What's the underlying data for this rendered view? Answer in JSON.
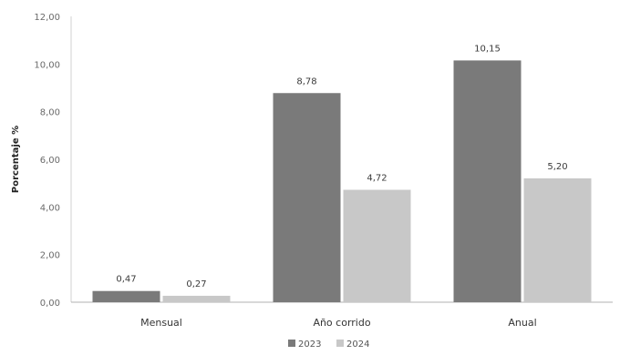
{
  "chart_data": {
    "type": "bar",
    "title": "",
    "xlabel": "",
    "ylabel": "Porcentaje %",
    "ylim": [
      0,
      12
    ],
    "yticks": [
      "0,00",
      "2,00",
      "4,00",
      "6,00",
      "8,00",
      "10,00",
      "12,00"
    ],
    "ytick_values": [
      0,
      2,
      4,
      6,
      8,
      10,
      12
    ],
    "categories": [
      "Mensual",
      "Año corrido",
      "Anual"
    ],
    "series": [
      {
        "name": "2023",
        "color": "#7a7a7a",
        "values": [
          0.47,
          8.78,
          10.15
        ],
        "labels": [
          "0,47",
          "8,78",
          "10,15"
        ]
      },
      {
        "name": "2024",
        "color": "#c8c8c8",
        "values": [
          0.27,
          4.72,
          5.2
        ],
        "labels": [
          "0,27",
          "4,72",
          "5,20"
        ]
      }
    ],
    "grid": false,
    "legend_position": "bottom-center"
  }
}
